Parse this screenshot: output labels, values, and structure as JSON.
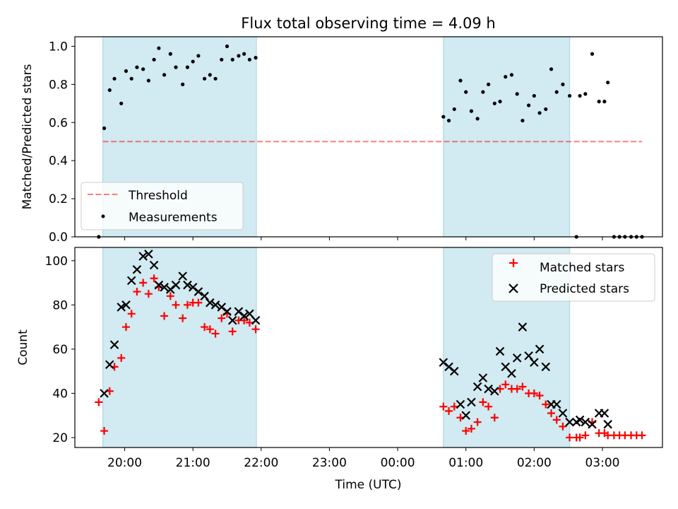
{
  "title": "Flux total observing time = 4.09 h",
  "colors": {
    "shade": "#add8e6",
    "threshold": "#ff0000",
    "measurement": "#000000",
    "matched": "#ff0000",
    "predicted": "#000000"
  },
  "chart_data": [
    {
      "type": "scatter",
      "panel": "top",
      "xlabel": "",
      "ylabel": "Matched/Predicted stars",
      "ylim": [
        0,
        1.05
      ],
      "yticks": [
        0.0,
        0.2,
        0.4,
        0.6,
        0.8,
        1.0
      ],
      "xlim": [
        19.27,
        3.88
      ],
      "shaded_intervals": [
        [
          19.68,
          21.93
        ],
        [
          0.67,
          2.52
        ]
      ],
      "legend": {
        "placement": "lower-left",
        "entries": [
          "Threshold",
          "Measurements"
        ]
      },
      "threshold": {
        "name": "Threshold",
        "y": 0.5,
        "x_range": [
          19.68,
          3.58
        ],
        "style": "dashed"
      },
      "series": [
        {
          "name": "Measurements",
          "marker": "dot",
          "points": [
            [
              19.62,
              0.0
            ],
            [
              19.7,
              0.57
            ],
            [
              19.78,
              0.77
            ],
            [
              19.85,
              0.83
            ],
            [
              19.95,
              0.7
            ],
            [
              20.02,
              0.87
            ],
            [
              20.1,
              0.83
            ],
            [
              20.18,
              0.89
            ],
            [
              20.27,
              0.88
            ],
            [
              20.35,
              0.82
            ],
            [
              20.43,
              0.93
            ],
            [
              20.5,
              0.99
            ],
            [
              20.58,
              0.85
            ],
            [
              20.67,
              0.96
            ],
            [
              20.75,
              0.89
            ],
            [
              20.85,
              0.8
            ],
            [
              20.92,
              0.89
            ],
            [
              21.0,
              0.92
            ],
            [
              21.08,
              0.95
            ],
            [
              21.17,
              0.83
            ],
            [
              21.25,
              0.85
            ],
            [
              21.33,
              0.83
            ],
            [
              21.42,
              0.93
            ],
            [
              21.5,
              1.0
            ],
            [
              21.58,
              0.93
            ],
            [
              21.67,
              0.95
            ],
            [
              21.75,
              0.96
            ],
            [
              21.83,
              0.93
            ],
            [
              21.92,
              0.94
            ],
            [
              0.67,
              0.63
            ],
            [
              0.75,
              0.61
            ],
            [
              0.83,
              0.67
            ],
            [
              0.92,
              0.82
            ],
            [
              1.0,
              0.76
            ],
            [
              1.08,
              0.66
            ],
            [
              1.17,
              0.62
            ],
            [
              1.25,
              0.76
            ],
            [
              1.33,
              0.8
            ],
            [
              1.42,
              0.7
            ],
            [
              1.5,
              0.71
            ],
            [
              1.58,
              0.84
            ],
            [
              1.67,
              0.85
            ],
            [
              1.75,
              0.75
            ],
            [
              1.83,
              0.61
            ],
            [
              1.92,
              0.69
            ],
            [
              2.0,
              0.74
            ],
            [
              2.08,
              0.65
            ],
            [
              2.17,
              0.67
            ],
            [
              2.25,
              0.88
            ],
            [
              2.33,
              0.76
            ],
            [
              2.42,
              0.8
            ],
            [
              2.52,
              0.74
            ],
            [
              2.62,
              0.0
            ],
            [
              2.67,
              0.74
            ],
            [
              2.75,
              0.75
            ],
            [
              2.85,
              0.96
            ],
            [
              2.95,
              0.71
            ],
            [
              3.03,
              0.71
            ],
            [
              3.08,
              0.81
            ],
            [
              3.17,
              0.0
            ],
            [
              3.25,
              0.0
            ],
            [
              3.33,
              0.0
            ],
            [
              3.42,
              0.0
            ],
            [
              3.5,
              0.0
            ],
            [
              3.58,
              0.0
            ]
          ]
        }
      ]
    },
    {
      "type": "scatter",
      "panel": "bottom",
      "xlabel": "Time (UTC)",
      "ylabel": "Count",
      "ylim": [
        15.5,
        106
      ],
      "yticks": [
        20,
        40,
        60,
        80,
        100
      ],
      "xlim": [
        19.27,
        3.88
      ],
      "xticks": [
        "20:00",
        "21:00",
        "22:00",
        "23:00",
        "00:00",
        "01:00",
        "02:00",
        "03:00"
      ],
      "shaded_intervals": [
        [
          19.68,
          21.93
        ],
        [
          0.67,
          2.52
        ]
      ],
      "legend": {
        "placement": "upper-right",
        "entries": [
          "Matched stars",
          "Predicted stars"
        ]
      },
      "series": [
        {
          "name": "Matched stars",
          "marker": "plus",
          "points": [
            [
              19.62,
              36
            ],
            [
              19.7,
              23
            ],
            [
              19.78,
              41
            ],
            [
              19.85,
              52
            ],
            [
              19.95,
              56
            ],
            [
              20.02,
              70
            ],
            [
              20.1,
              76
            ],
            [
              20.18,
              86
            ],
            [
              20.27,
              90
            ],
            [
              20.35,
              85
            ],
            [
              20.43,
              92
            ],
            [
              20.5,
              88
            ],
            [
              20.58,
              75
            ],
            [
              20.67,
              84
            ],
            [
              20.75,
              80
            ],
            [
              20.85,
              74
            ],
            [
              20.92,
              80
            ],
            [
              21.0,
              81
            ],
            [
              21.08,
              81
            ],
            [
              21.17,
              70
            ],
            [
              21.25,
              69
            ],
            [
              21.33,
              67
            ],
            [
              21.42,
              74
            ],
            [
              21.5,
              76
            ],
            [
              21.58,
              68
            ],
            [
              21.67,
              73
            ],
            [
              21.75,
              73
            ],
            [
              21.83,
              72
            ],
            [
              21.92,
              69
            ],
            [
              0.67,
              34
            ],
            [
              0.75,
              32
            ],
            [
              0.83,
              34
            ],
            [
              0.92,
              29
            ],
            [
              1.0,
              23
            ],
            [
              1.08,
              24
            ],
            [
              1.17,
              27
            ],
            [
              1.25,
              36
            ],
            [
              1.33,
              34
            ],
            [
              1.42,
              29
            ],
            [
              1.5,
              42
            ],
            [
              1.58,
              44
            ],
            [
              1.67,
              42
            ],
            [
              1.75,
              42
            ],
            [
              1.83,
              43
            ],
            [
              1.92,
              40
            ],
            [
              2.0,
              40
            ],
            [
              2.08,
              39
            ],
            [
              2.17,
              35
            ],
            [
              2.25,
              31
            ],
            [
              2.33,
              28
            ],
            [
              2.42,
              25
            ],
            [
              2.52,
              20
            ],
            [
              2.62,
              20
            ],
            [
              2.67,
              20
            ],
            [
              2.75,
              21
            ],
            [
              2.85,
              27
            ],
            [
              2.95,
              22
            ],
            [
              3.03,
              22
            ],
            [
              3.08,
              21
            ],
            [
              3.17,
              21
            ],
            [
              3.25,
              21
            ],
            [
              3.33,
              21
            ],
            [
              3.42,
              21
            ],
            [
              3.5,
              21
            ],
            [
              3.58,
              21
            ]
          ]
        },
        {
          "name": "Predicted stars",
          "marker": "x",
          "points": [
            [
              19.7,
              40
            ],
            [
              19.78,
              53
            ],
            [
              19.85,
              62
            ],
            [
              19.95,
              79
            ],
            [
              20.02,
              80
            ],
            [
              20.1,
              91
            ],
            [
              20.18,
              96
            ],
            [
              20.27,
              102
            ],
            [
              20.35,
              103
            ],
            [
              20.43,
              98
            ],
            [
              20.5,
              89
            ],
            [
              20.58,
              88
            ],
            [
              20.67,
              87
            ],
            [
              20.75,
              89
            ],
            [
              20.85,
              93
            ],
            [
              20.92,
              89
            ],
            [
              21.0,
              88
            ],
            [
              21.08,
              86
            ],
            [
              21.17,
              84
            ],
            [
              21.25,
              81
            ],
            [
              21.33,
              80
            ],
            [
              21.42,
              79
            ],
            [
              21.5,
              77
            ],
            [
              21.58,
              73
            ],
            [
              21.67,
              77
            ],
            [
              21.75,
              75
            ],
            [
              21.83,
              76
            ],
            [
              21.92,
              73
            ],
            [
              0.67,
              54
            ],
            [
              0.75,
              52
            ],
            [
              0.83,
              50
            ],
            [
              0.92,
              35
            ],
            [
              1.0,
              30
            ],
            [
              1.08,
              36
            ],
            [
              1.17,
              43
            ],
            [
              1.25,
              47
            ],
            [
              1.33,
              42
            ],
            [
              1.42,
              41
            ],
            [
              1.5,
              59
            ],
            [
              1.58,
              52
            ],
            [
              1.67,
              49
            ],
            [
              1.75,
              56
            ],
            [
              1.83,
              70
            ],
            [
              1.92,
              57
            ],
            [
              2.0,
              54
            ],
            [
              2.08,
              60
            ],
            [
              2.17,
              52
            ],
            [
              2.25,
              35
            ],
            [
              2.33,
              35
            ],
            [
              2.42,
              31
            ],
            [
              2.52,
              27
            ],
            [
              2.62,
              27
            ],
            [
              2.67,
              28
            ],
            [
              2.75,
              27
            ],
            [
              2.85,
              26
            ],
            [
              2.95,
              31
            ],
            [
              3.03,
              31
            ],
            [
              3.08,
              26
            ]
          ]
        }
      ]
    }
  ]
}
